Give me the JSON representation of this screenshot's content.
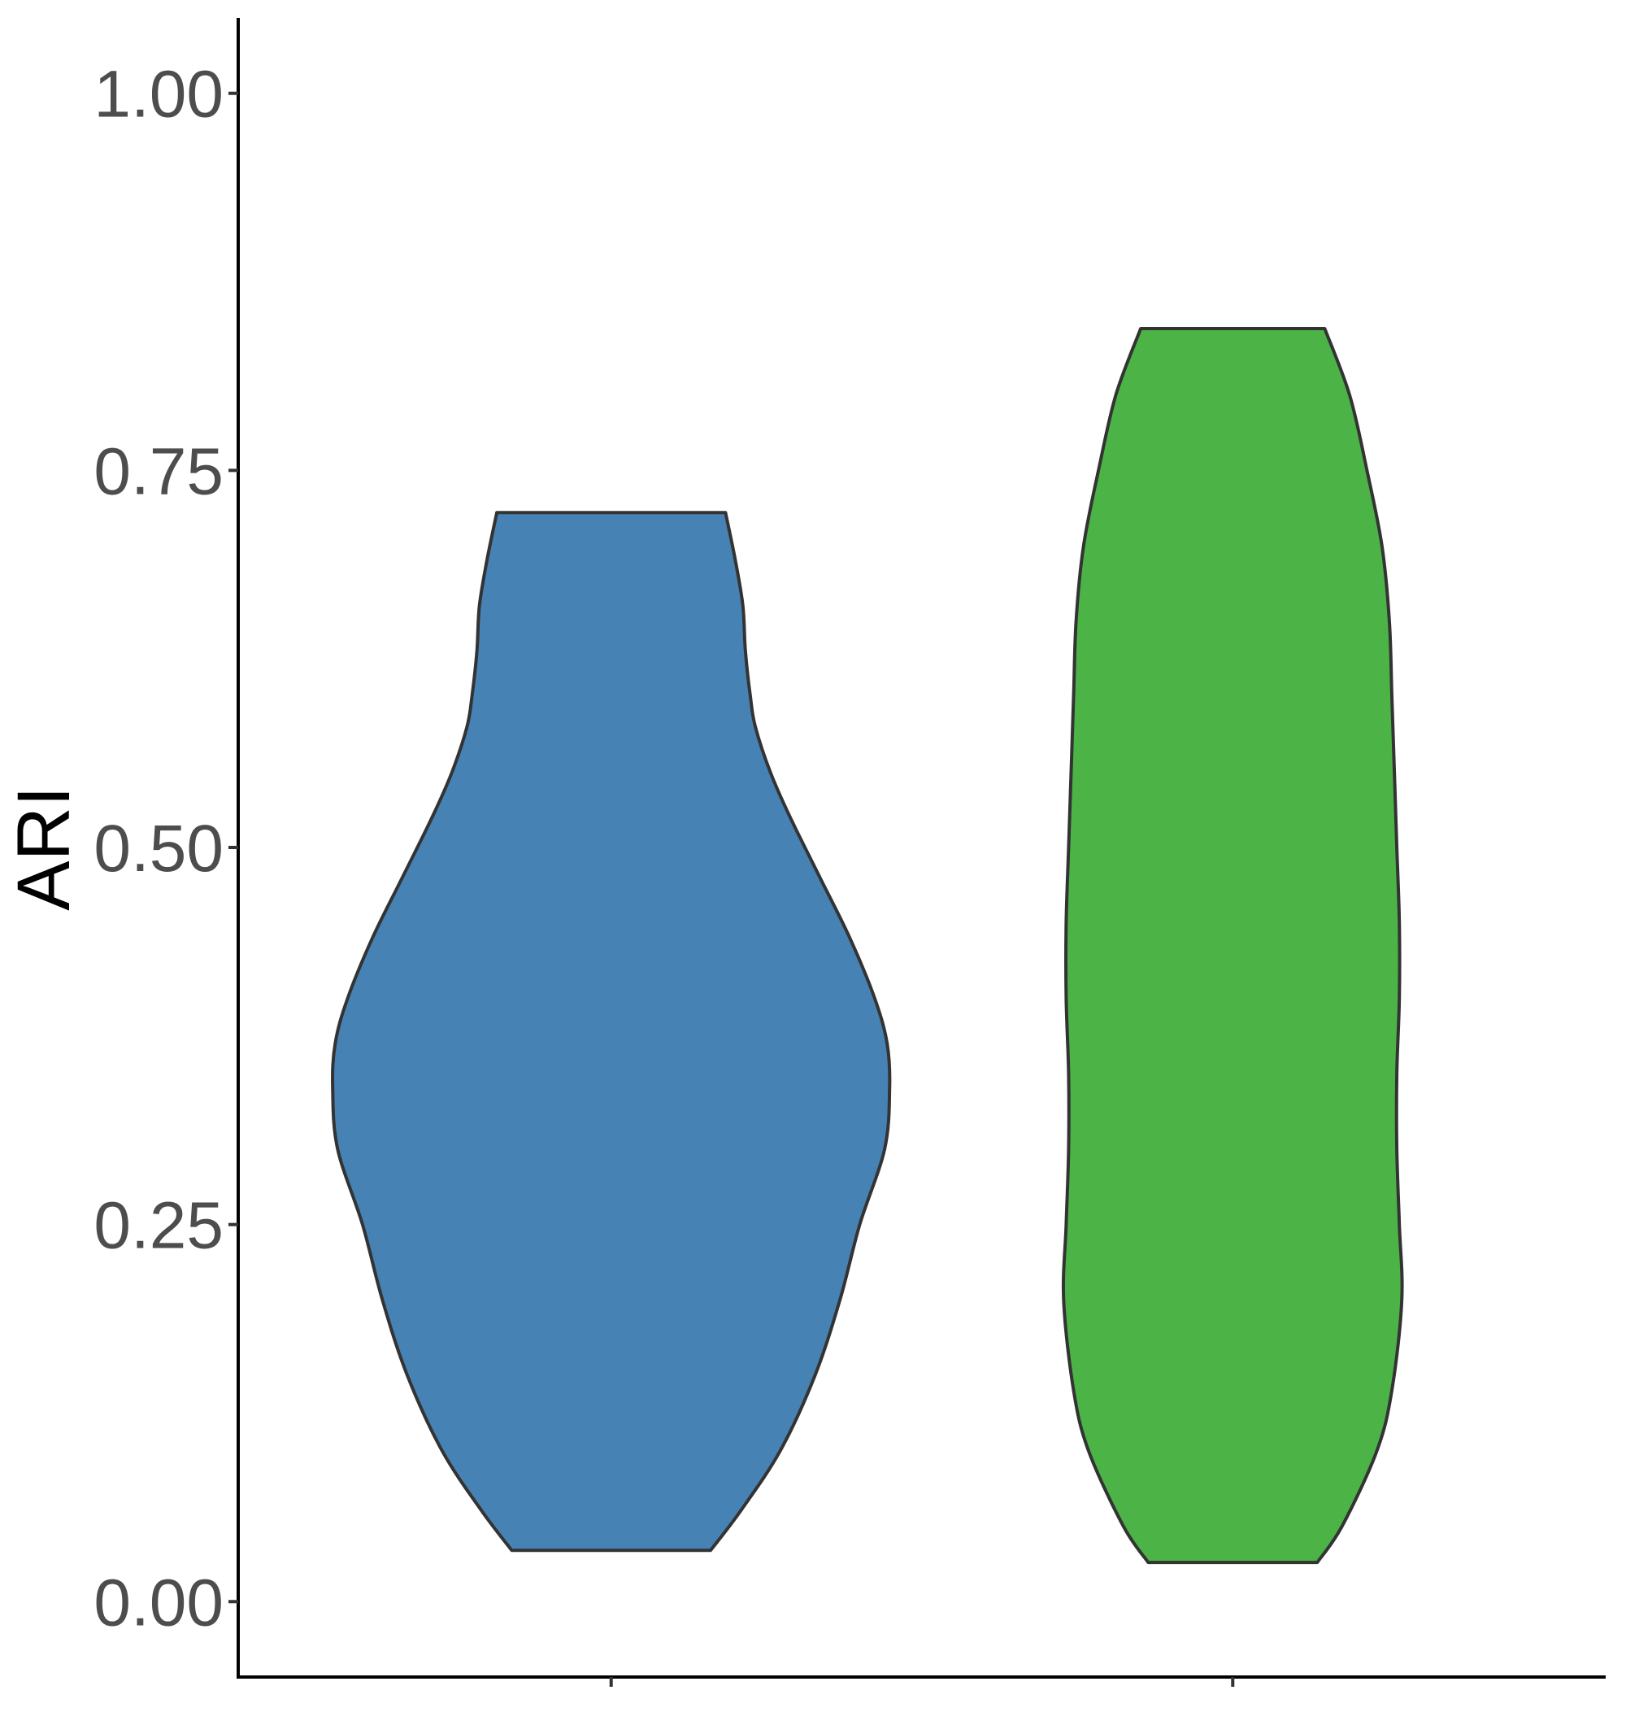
{
  "chart_data": {
    "type": "violin",
    "title": "",
    "xlabel": "",
    "ylabel": "ARI",
    "ylim": [
      -0.05,
      1.05
    ],
    "yticks": [
      "0.00",
      "0.25",
      "0.50",
      "0.75",
      "1.00"
    ],
    "ytick_values": [
      0.0,
      0.25,
      0.5,
      0.75,
      1.0
    ],
    "categories": [
      "",
      ""
    ],
    "grid": false,
    "legend": "none",
    "series": [
      {
        "color": "#4682b4",
        "min": 0.034,
        "max": 0.722,
        "profile": [
          [
            0.034,
            0.2
          ],
          [
            0.06,
            0.26
          ],
          [
            0.1,
            0.34
          ],
          [
            0.15,
            0.41
          ],
          [
            0.2,
            0.46
          ],
          [
            0.25,
            0.5
          ],
          [
            0.3,
            0.55
          ],
          [
            0.34,
            0.56
          ],
          [
            0.37,
            0.555
          ],
          [
            0.4,
            0.53
          ],
          [
            0.44,
            0.48
          ],
          [
            0.48,
            0.42
          ],
          [
            0.52,
            0.36
          ],
          [
            0.55,
            0.32
          ],
          [
            0.58,
            0.29
          ],
          [
            0.6,
            0.28
          ],
          [
            0.63,
            0.27
          ],
          [
            0.66,
            0.265
          ],
          [
            0.69,
            0.25
          ],
          [
            0.722,
            0.23
          ]
        ]
      },
      {
        "color": "#4cb447",
        "min": 0.026,
        "max": 0.844,
        "profile": [
          [
            0.026,
            0.17
          ],
          [
            0.05,
            0.22
          ],
          [
            0.1,
            0.29
          ],
          [
            0.14,
            0.32
          ],
          [
            0.2,
            0.34
          ],
          [
            0.25,
            0.335
          ],
          [
            0.3,
            0.33
          ],
          [
            0.35,
            0.33
          ],
          [
            0.4,
            0.335
          ],
          [
            0.45,
            0.335
          ],
          [
            0.5,
            0.33
          ],
          [
            0.55,
            0.325
          ],
          [
            0.6,
            0.32
          ],
          [
            0.65,
            0.315
          ],
          [
            0.7,
            0.3
          ],
          [
            0.75,
            0.27
          ],
          [
            0.8,
            0.235
          ],
          [
            0.844,
            0.185
          ]
        ]
      }
    ]
  }
}
